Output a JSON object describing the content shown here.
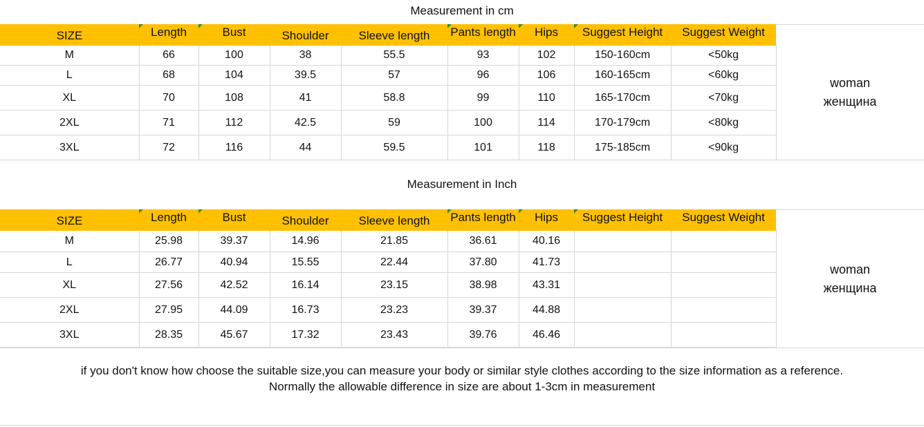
{
  "cm_section": {
    "title": "Measurement in cm",
    "headers": [
      "SIZE",
      "Length",
      "Bust",
      "Shoulder",
      "Sleeve length",
      "Pants length",
      "Hips",
      "Suggest Height",
      "Suggest Weight"
    ],
    "rows": [
      [
        "M",
        "66",
        "100",
        "38",
        "55.5",
        "93",
        "102",
        "150-160cm",
        "<50kg"
      ],
      [
        "L",
        "68",
        "104",
        "39.5",
        "57",
        "96",
        "106",
        "160-165cm",
        "<60kg"
      ],
      [
        "XL",
        "70",
        "108",
        "41",
        "58.8",
        "99",
        "110",
        "165-170cm",
        "<70kg"
      ],
      [
        "2XL",
        "71",
        "112",
        "42.5",
        "59",
        "100",
        "114",
        "170-179cm",
        "<80kg"
      ],
      [
        "3XL",
        "72",
        "116",
        "44",
        "59.5",
        "101",
        "118",
        "175-185cm",
        "<90kg"
      ]
    ],
    "side_label_1": "woman",
    "side_label_2": "женщина"
  },
  "inch_section": {
    "title": "Measurement in Inch",
    "headers": [
      "SIZE",
      "Length",
      "Bust",
      "Shoulder",
      "Sleeve length",
      "Pants length",
      "Hips",
      "Suggest Height",
      "Suggest Weight"
    ],
    "rows": [
      [
        "M",
        "25.98",
        "39.37",
        "14.96",
        "21.85",
        "36.61",
        "40.16",
        "",
        ""
      ],
      [
        "L",
        "26.77",
        "40.94",
        "15.55",
        "22.44",
        "37.80",
        "41.73",
        "",
        ""
      ],
      [
        "XL",
        "27.56",
        "42.52",
        "16.14",
        "23.15",
        "38.98",
        "43.31",
        "",
        ""
      ],
      [
        "2XL",
        "27.95",
        "44.09",
        "16.73",
        "23.23",
        "39.37",
        "44.88",
        "",
        ""
      ],
      [
        "3XL",
        "28.35",
        "45.67",
        "17.32",
        "23.43",
        "39.76",
        "46.46",
        "",
        ""
      ]
    ],
    "side_label_1": "woman",
    "side_label_2": "женщина"
  },
  "note": {
    "line1": "if you don't know how choose the suitable size,you can measure your body or similar style clothes according to the size information as a reference.",
    "line2": "Normally the allowable difference in size are about 1-3cm in measurement"
  },
  "colors": {
    "header_bg": "#ffc000",
    "grid": "#d6d6d6",
    "corner_marker": "#3a8a2a"
  }
}
